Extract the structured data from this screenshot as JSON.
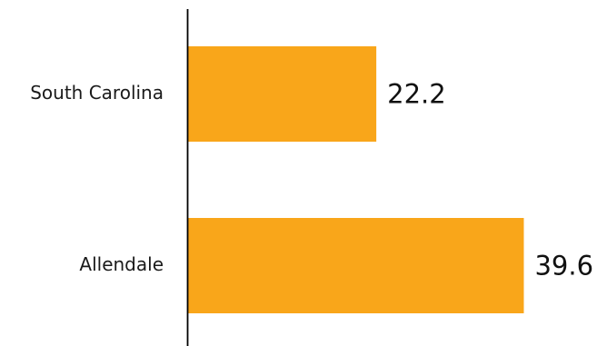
{
  "chart_data": {
    "type": "bar",
    "orientation": "horizontal",
    "categories": [
      "South Carolina",
      "Allendale"
    ],
    "values": [
      22.2,
      39.6
    ],
    "title": "",
    "xlabel": "",
    "ylabel": "",
    "xlim": [
      0,
      40.3
    ],
    "grid": false,
    "legend": "none",
    "bar_color": "#F9A61A",
    "axis_color": "#000000"
  }
}
